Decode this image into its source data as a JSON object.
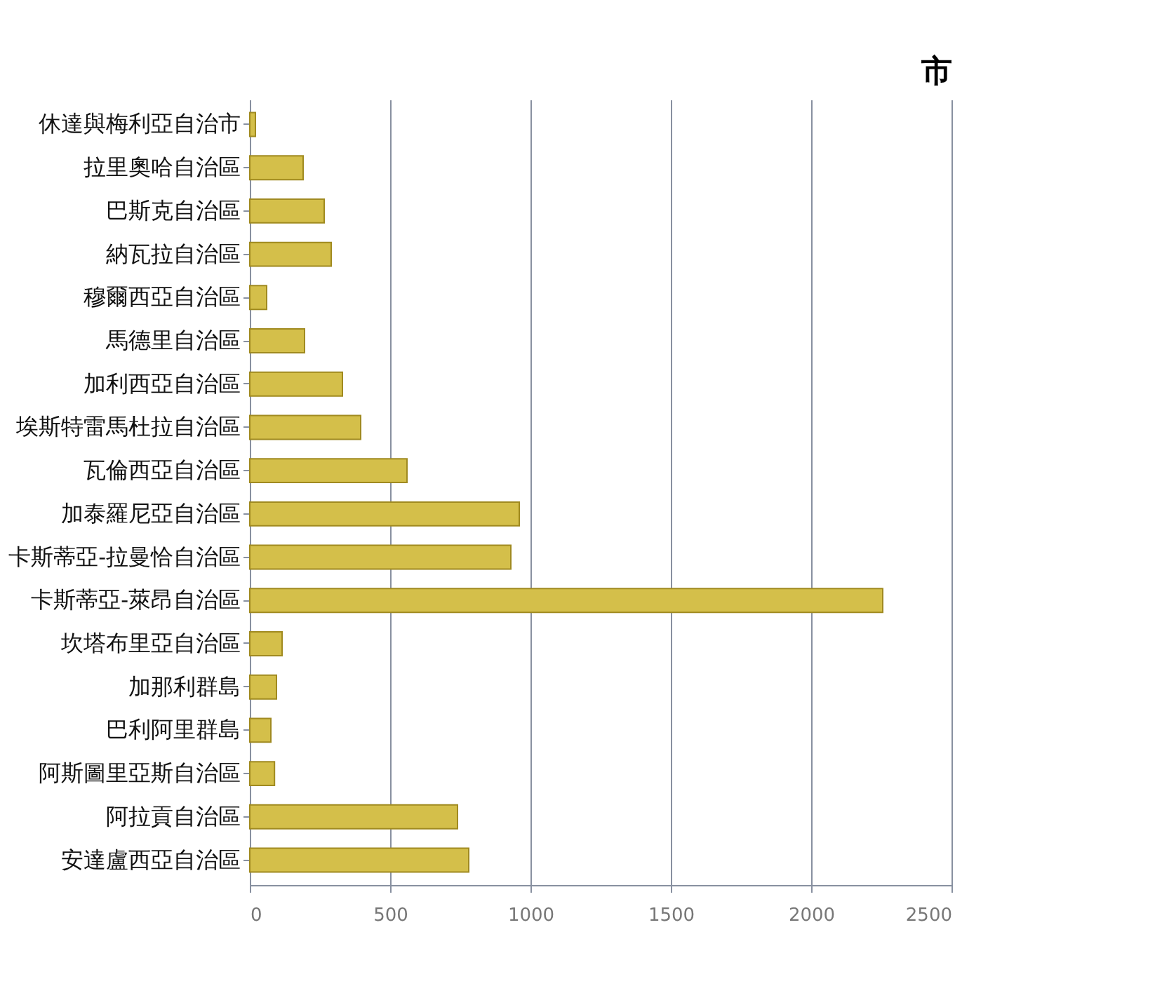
{
  "chart_data": {
    "type": "bar",
    "orientation": "horizontal",
    "annotations": [
      "市"
    ],
    "categories": [
      "休達與梅利亞自治市",
      "拉里奧哈自治區",
      "巴斯克自治區",
      "納瓦拉自治區",
      "穆爾西亞自治區",
      "馬德里自治區",
      "加利西亞自治區",
      "埃斯特雷馬杜拉自治區",
      "瓦倫西亞自治區",
      "加泰羅尼亞自治區",
      "卡斯蒂亞-拉曼恰自治區",
      "卡斯蒂亞-萊昂自治區",
      "坎塔布里亞自治區",
      "加那利群島",
      "巴利阿里群島",
      "阿斯圖里亞斯自治區",
      "阿拉貢自治區",
      "安達盧西亞自治區"
    ],
    "values": [
      20,
      190,
      265,
      290,
      60,
      195,
      330,
      395,
      560,
      960,
      930,
      2255,
      115,
      95,
      75,
      88,
      740,
      780
    ],
    "color": "#d4bf4a",
    "xlim": [
      0,
      2500
    ],
    "xticks": [
      0,
      500,
      1000,
      1500,
      2000,
      2500
    ],
    "grid": "x"
  }
}
